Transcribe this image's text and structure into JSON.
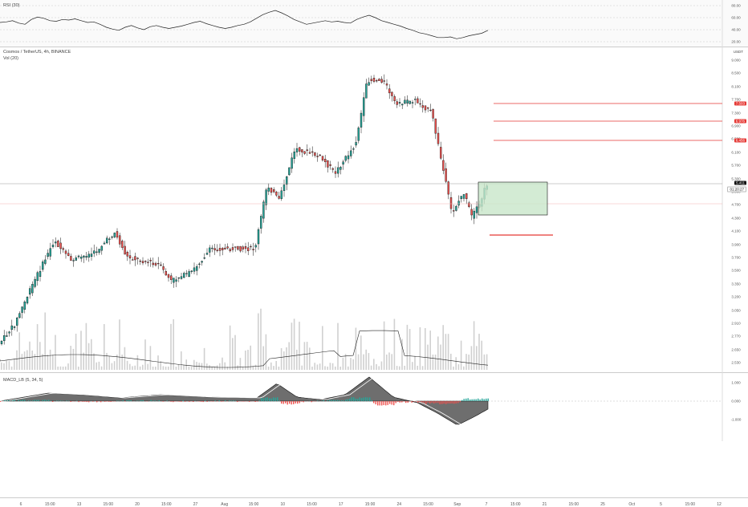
{
  "rsi": {
    "title": "RSI (30)",
    "levels": [
      {
        "label": "80.00",
        "value": 80
      },
      {
        "label": "60.00",
        "value": 60
      },
      {
        "label": "40.00",
        "value": 40
      },
      {
        "label": "20.00",
        "value": 20
      }
    ],
    "values": [
      55,
      56,
      58,
      54,
      52,
      60,
      64,
      62,
      58,
      57,
      60,
      59,
      61,
      58,
      55,
      56,
      52,
      47,
      44,
      42,
      47,
      50,
      46,
      43,
      48,
      50,
      47,
      45,
      47,
      49,
      52,
      55,
      57,
      53,
      50,
      47,
      45,
      47,
      50,
      52,
      56,
      62,
      68,
      72,
      75,
      71,
      66,
      60,
      56,
      52,
      54,
      56,
      58,
      56,
      57,
      55,
      54,
      60,
      64,
      67,
      63,
      58,
      55,
      52,
      49,
      45,
      42,
      38,
      36,
      33,
      30,
      30,
      31,
      28,
      30,
      33,
      35,
      37,
      42
    ]
  },
  "main": {
    "title": "Cosmos / TetherUS, 4h, BINANCE",
    "volume_title": "Vol (20)",
    "currency": "USDT",
    "price_ticks": [
      "9.000",
      "8.500",
      "8.100",
      "7.700",
      "7.300",
      "6.900",
      "6.500",
      "6.100",
      "5.700",
      "5.300",
      "5.000",
      "4.700",
      "4.300",
      "4.100",
      "3.900",
      "3.700",
      "3.500",
      "3.350",
      "3.200",
      "3.050",
      "2.910",
      "2.770",
      "2.650",
      "2.530"
    ],
    "current_price_tag": "5.411",
    "countdown_tag": "01:20:27",
    "level_tags": [
      {
        "label": "7.503",
        "color": "#e53935"
      },
      {
        "label": "6.976",
        "color": "#e53935"
      },
      {
        "label": "6.456",
        "color": "#e53935"
      }
    ],
    "colors": {
      "up": "#26a69a",
      "down": "#ef5350",
      "candle": "#111111",
      "box_fill": "#c8e6c9"
    }
  },
  "macd": {
    "title": "MACD_LB (5, 34, 5)",
    "ticks": [
      "1.000",
      "0.000",
      "-1.000"
    ]
  },
  "time_axis": [
    "6",
    "15:00",
    "13",
    "15:00",
    "20",
    "15:00",
    "27",
    "Aug",
    "15:00",
    "10",
    "15:00",
    "17",
    "15:00",
    "24",
    "15:00",
    "Sep",
    "7",
    "15:00",
    "21",
    "15:00",
    "25",
    "Oct",
    "5",
    "15:00",
    "12"
  ]
}
